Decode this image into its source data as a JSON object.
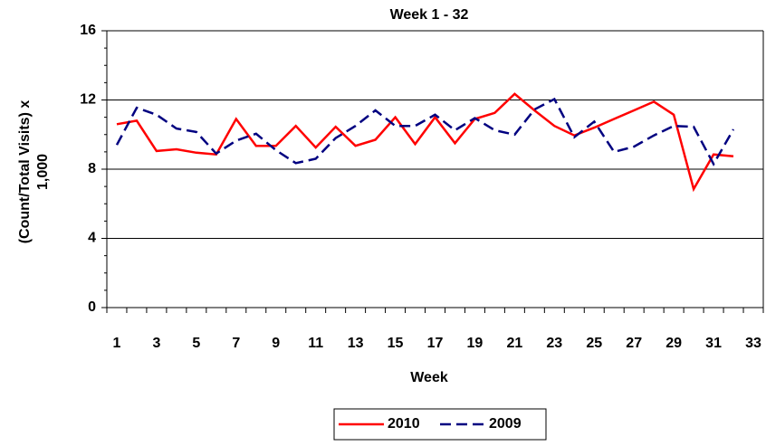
{
  "chart_data": {
    "type": "line",
    "title": "Week 1 - 32",
    "x_label": "Week",
    "y_label": [
      "(Count/Total Visits) x",
      "1,000"
    ],
    "categories": [
      "1",
      null,
      "3",
      null,
      "5",
      null,
      "7",
      null,
      "9",
      null,
      "11",
      null,
      "13",
      null,
      "15",
      null,
      "17",
      null,
      "19",
      null,
      "21",
      null,
      "23",
      null,
      "25",
      null,
      "27",
      null,
      "29",
      null,
      "31",
      null,
      "33"
    ],
    "series": [
      {
        "name": "2010",
        "color": "#ff0000",
        "dash": false,
        "values": [
          10.6,
          10.8,
          9.05,
          9.15,
          8.95,
          8.85,
          10.9,
          9.35,
          9.35,
          10.5,
          9.25,
          10.45,
          9.35,
          9.7,
          11.0,
          9.45,
          11.0,
          9.5,
          10.9,
          11.25,
          12.35,
          11.4,
          10.5,
          9.95,
          10.4,
          10.9,
          11.4,
          11.9,
          11.15,
          6.85,
          8.85,
          8.75,
          null
        ]
      },
      {
        "name": "2009",
        "color": "#000080",
        "dash": true,
        "values": [
          9.4,
          11.55,
          11.15,
          10.35,
          10.15,
          8.9,
          9.65,
          10.05,
          9.1,
          8.35,
          8.6,
          9.8,
          10.5,
          11.4,
          10.5,
          10.5,
          11.15,
          10.25,
          10.95,
          10.25,
          10.0,
          11.45,
          12.05,
          9.85,
          10.75,
          9.0,
          9.3,
          9.95,
          10.5,
          10.45,
          8.3,
          10.3,
          null
        ]
      }
    ],
    "ylim": [
      0,
      16
    ],
    "yticks": [
      0,
      4,
      8,
      12,
      16
    ],
    "grid": true,
    "legend": "bottom"
  }
}
